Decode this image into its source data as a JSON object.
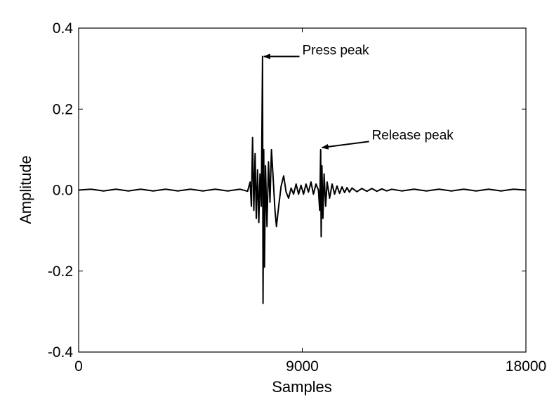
{
  "chart_data": {
    "type": "line",
    "title": "",
    "xlabel": "Samples",
    "ylabel": "Amplitude",
    "xlim": [
      0,
      18000
    ],
    "ylim": [
      -0.4,
      0.4
    ],
    "grid": false,
    "x_ticks": [
      {
        "value": 0,
        "label": "0"
      },
      {
        "value": 9000,
        "label": "9000"
      },
      {
        "value": 18000,
        "label": "18000"
      }
    ],
    "y_ticks": [
      {
        "value": 0.4,
        "label": "0.4"
      },
      {
        "value": 0.2,
        "label": "0.2"
      },
      {
        "value": 0.0,
        "label": "0.0"
      },
      {
        "value": -0.2,
        "label": "-0.2"
      },
      {
        "value": -0.4,
        "label": "-0.4"
      }
    ],
    "series": [
      {
        "color": "#000000",
        "points": [
          [
            0,
            0.0
          ],
          [
            500,
            0.002
          ],
          [
            1000,
            -0.002
          ],
          [
            1500,
            0.002
          ],
          [
            2000,
            -0.002
          ],
          [
            2500,
            0.002
          ],
          [
            3000,
            -0.002
          ],
          [
            3500,
            0.002
          ],
          [
            4000,
            -0.002
          ],
          [
            4500,
            0.002
          ],
          [
            5000,
            -0.002
          ],
          [
            5500,
            0.002
          ],
          [
            6000,
            -0.002
          ],
          [
            6500,
            0.002
          ],
          [
            6800,
            -0.003
          ],
          [
            6900,
            0.02
          ],
          [
            6950,
            -0.04
          ],
          [
            7000,
            0.13
          ],
          [
            7050,
            -0.05
          ],
          [
            7100,
            0.09
          ],
          [
            7150,
            -0.07
          ],
          [
            7200,
            0.05
          ],
          [
            7250,
            -0.08
          ],
          [
            7300,
            0.04
          ],
          [
            7350,
            -0.04
          ],
          [
            7400,
            0.33
          ],
          [
            7420,
            -0.28
          ],
          [
            7450,
            0.1
          ],
          [
            7480,
            -0.19
          ],
          [
            7520,
            0.06
          ],
          [
            7580,
            -0.09
          ],
          [
            7640,
            0.07
          ],
          [
            7700,
            -0.03
          ],
          [
            7760,
            0.1
          ],
          [
            7820,
            0.04
          ],
          [
            7900,
            -0.05
          ],
          [
            7960,
            -0.09
          ],
          [
            8050,
            -0.04
          ],
          [
            8150,
            0.01
          ],
          [
            8250,
            0.035
          ],
          [
            8350,
            -0.005
          ],
          [
            8450,
            -0.02
          ],
          [
            8550,
            0.005
          ],
          [
            8650,
            -0.01
          ],
          [
            8750,
            0.015
          ],
          [
            8850,
            -0.01
          ],
          [
            8950,
            0.012
          ],
          [
            9050,
            -0.01
          ],
          [
            9150,
            0.015
          ],
          [
            9250,
            -0.005
          ],
          [
            9350,
            0.02
          ],
          [
            9450,
            -0.01
          ],
          [
            9550,
            0.015
          ],
          [
            9650,
            0.0
          ],
          [
            9700,
            -0.05
          ],
          [
            9740,
            0.1
          ],
          [
            9760,
            -0.115
          ],
          [
            9790,
            0.06
          ],
          [
            9830,
            -0.07
          ],
          [
            9880,
            0.04
          ],
          [
            9940,
            -0.04
          ],
          [
            10000,
            0.02
          ],
          [
            10100,
            -0.02
          ],
          [
            10200,
            0.015
          ],
          [
            10300,
            -0.01
          ],
          [
            10400,
            0.01
          ],
          [
            10500,
            -0.008
          ],
          [
            10600,
            0.008
          ],
          [
            10700,
            -0.006
          ],
          [
            10800,
            0.006
          ],
          [
            10900,
            -0.005
          ],
          [
            11000,
            0.005
          ],
          [
            11200,
            -0.004
          ],
          [
            11400,
            0.004
          ],
          [
            11600,
            -0.003
          ],
          [
            11800,
            0.004
          ],
          [
            12000,
            -0.003
          ],
          [
            12200,
            0.003
          ],
          [
            12400,
            -0.002
          ],
          [
            12600,
            0.002
          ],
          [
            13000,
            -0.002
          ],
          [
            13500,
            0.002
          ],
          [
            14000,
            -0.002
          ],
          [
            14500,
            0.002
          ],
          [
            15000,
            -0.002
          ],
          [
            15500,
            0.002
          ],
          [
            16000,
            -0.002
          ],
          [
            16500,
            0.002
          ],
          [
            17000,
            -0.002
          ],
          [
            17500,
            0.002
          ],
          [
            18000,
            0.0
          ]
        ]
      }
    ],
    "annotations": [
      {
        "text": "Press peak",
        "point": [
          7400,
          0.33
        ],
        "text_pos": [
          9000,
          0.33
        ]
      },
      {
        "text": "Release peak",
        "point": [
          9740,
          0.105
        ],
        "text_pos": [
          11800,
          0.12
        ]
      }
    ]
  }
}
